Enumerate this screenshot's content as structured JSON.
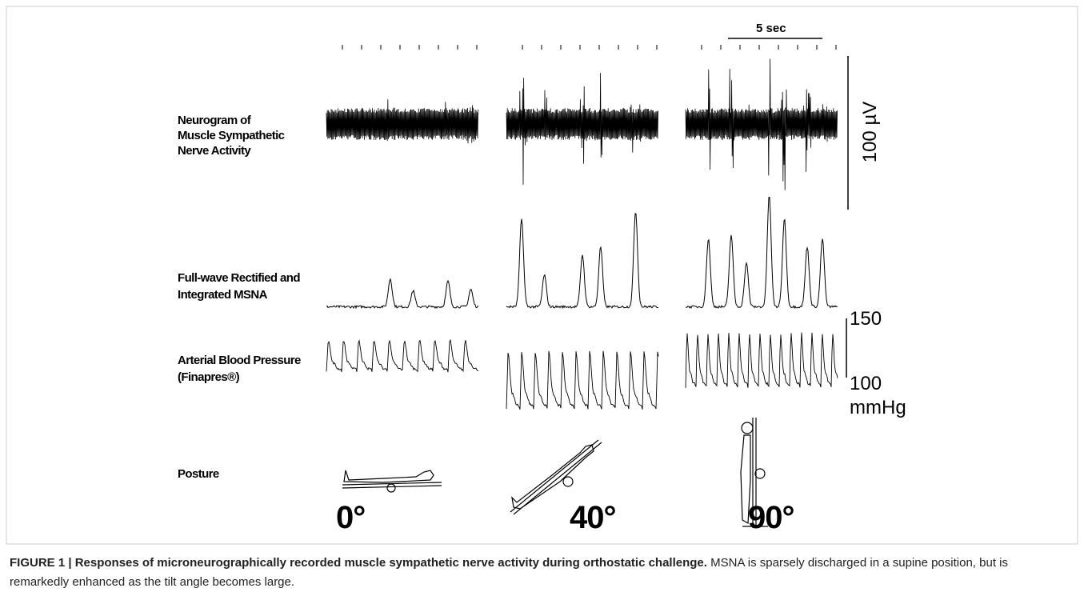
{
  "figure": {
    "labels": {
      "neurogram": [
        "Neurogram of",
        "Muscle Sympathetic",
        "Nerve Activity"
      ],
      "integrated": [
        "Full-wave Rectified and",
        "Integrated MSNA"
      ],
      "pressure": [
        "Arterial Blood Pressure",
        "(Finapres®)"
      ],
      "posture": "Posture"
    },
    "scales": {
      "time": "5 sec",
      "voltage": "100 µV",
      "pressure_high": "150",
      "pressure_low": "100",
      "pressure_unit": "mmHg"
    },
    "angles": [
      "0°",
      "40°",
      "90°"
    ]
  },
  "caption": {
    "label": "FIGURE 1 | Responses of microneurographically recorded muscle sympathetic nerve activity during orthostatic challenge.",
    "text": "MSNA is sparsely discharged in a supine position, but is remarkedly enhanced as the tilt angle becomes large."
  }
}
